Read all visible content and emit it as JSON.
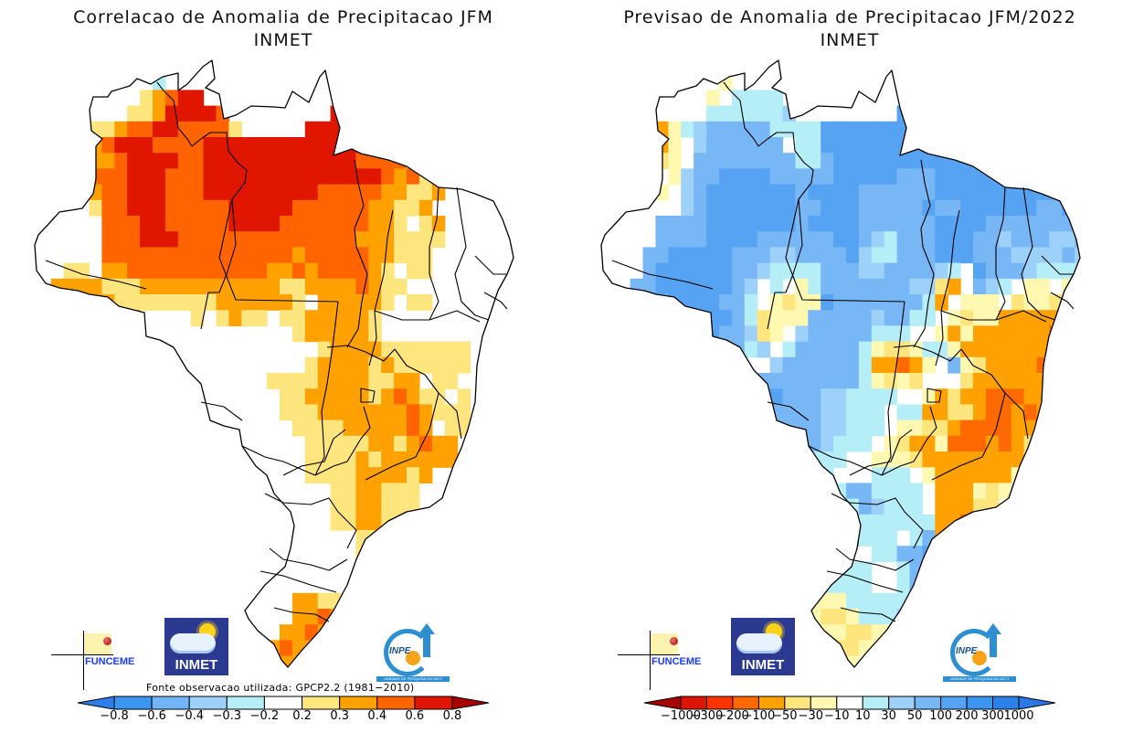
{
  "left_panel": {
    "title_line1": "Correlacao de Anomalia de Precipitacao JFM",
    "title_line2": "INMET",
    "source_note": "Fonte observacao utilizada: GPCP2.2 (1981−2010)",
    "logos": {
      "funceme": "FUNCEME",
      "inmet": "INMET",
      "inpe": "INPE",
      "inpe_subtitle": "UNIDADE DE PESQUISA DO MCTI"
    },
    "colorbar": {
      "labels": [
        "−0.8",
        "−0.6",
        "−0.4",
        "−0.3",
        "−0.2",
        "0.2",
        "0.3",
        "0.4",
        "0.6",
        "0.8"
      ],
      "colors": [
        "#2f7fea",
        "#3d95f2",
        "#72b5f7",
        "#9dd1f9",
        "#b6eef8",
        "#ffffff",
        "#ffe57d",
        "#ffa100",
        "#ff6400",
        "#e01600",
        "#a60000"
      ]
    }
  },
  "right_panel": {
    "title_line1": "Previsao de Anomalia de Precipitacao JFM/2022",
    "title_line2": "INMET",
    "logos": {
      "funceme": "FUNCEME",
      "inmet": "INMET",
      "inpe": "INPE",
      "inpe_subtitle": "UNIDADE DE PESQUISA DO MCTI"
    },
    "colorbar": {
      "labels": [
        "−1000",
        "−300",
        "−200",
        "−100",
        "−50",
        "−30",
        "−10",
        "10",
        "30",
        "50",
        "100",
        "200",
        "300",
        "1000"
      ],
      "colors": [
        "#a60000",
        "#dc1400",
        "#ff3200",
        "#ff6a00",
        "#ffa100",
        "#ffe57d",
        "#fff8b0",
        "#ffffff",
        "#b6eef8",
        "#9dd1f9",
        "#78b7f6",
        "#55a3f2",
        "#3d95f2",
        "#2d82e8",
        "#2a78e6"
      ]
    }
  },
  "chart_data": [
    {
      "type": "heatmap",
      "title": "Correlacao de Anomalia de Precipitacao JFM",
      "subtitle": "INMET",
      "region": "Brazil",
      "variable": "Correlation of precipitation anomaly (JFM)",
      "source": "GPCP2.2 (1981-2010)",
      "levels": [
        -0.8,
        -0.6,
        -0.4,
        -0.3,
        -0.2,
        0.2,
        0.3,
        0.4,
        0.6,
        0.8
      ],
      "class_colors": [
        "#3d95f2",
        "#72b5f7",
        "#9dd1f9",
        "#b6eef8",
        "#ffffff",
        "#ffe57d",
        "#ffa100",
        "#ff6400",
        "#e01600"
      ],
      "class_ranges": [
        "-0.8..-0.6",
        "-0.6..-0.4",
        "-0.4..-0.3",
        "-0.3..-0.2",
        "-0.2..0.2",
        "0.2..0.3",
        "0.3..0.4",
        "0.4..0.6",
        "0.6..0.8"
      ],
      "grid_note": "Each character is a grid cell class index into class_colors (4 = white/neutral, '.' = no data/outside)",
      "grid": [
        "..........................................",
        "..........3..4444.........................",
        ".........5678844..........................",
        "........556888874.......88777.............",
        ".....556778877775.....8888877.............",
        ".....67888777788888888888887775...........",
        ".....66788887788888888888877775...........",
        ".....77788877788888888888888767556.......",
        ".....6778887778888888887777766556........",
        ".....577888777778888877777766556.........",
        ".....4777887777788887777777665456........",
        ".....4777888777777777777776665555........",
        "....4477777777777777767777766555.........",
        "...55466777777777776676777765455.........",
        "..6666555666666666665566667655...........",
        "..667665555555566666654666665.55.........",
        "..66776664444545655455666665.............",
        "...5765544444444444445666665.............",
        "....565.3.......4444444566665555555......",
        ".........3.........4445666656555555......",
        "...................555566665566455.......",
        "....................556666656765545......",
        "....................555666666676555......",
        ".....................55556666676455......",
        "......................55555665676645.....",
        "......................555565666666445....",
        "......................5555666656444445...",
        "........................55665554444445...",
        "........................55665554444455...",
        "........................5566554444445....",
        "........................445555444445.....",
        "..........................5555...........",
        "........................................",
        "........................................",
        ".....................6655................",
        ".....................667655..............",
        "....................6676655..............",
        "...................67666655..............",
        "...................66655544..............",
        "....................66555................",
        "........................................."
      ]
    },
    {
      "type": "heatmap",
      "title": "Previsao de Anomalia de Precipitacao JFM/2022",
      "subtitle": "INMET",
      "region": "Brazil",
      "variable": "Forecast precipitation anomaly JFM/2022 (mm)",
      "levels": [
        -1000,
        -300,
        -200,
        -100,
        -50,
        -30,
        -10,
        10,
        30,
        50,
        100,
        200,
        300,
        1000
      ],
      "class_colors": [
        "#dc1400",
        "#ff3200",
        "#ff6a00",
        "#ffa100",
        "#ffe57d",
        "#fff8b0",
        "#ffffff",
        "#b6eef8",
        "#9dd1f9",
        "#78b7f6",
        "#55a3f2",
        "#3d95f2",
        "#2d82e8"
      ],
      "class_ranges": [
        "-1000..-300",
        "-300..-200",
        "-200..-100",
        "-100..-50",
        "-50..-30",
        "-30..-10",
        "-10..10",
        "10..30",
        "30..50",
        "50..100",
        "100..200",
        "200..300",
        "300..1000"
      ],
      "grid_note": "Each character is a grid cell class: a=-1000..-300, b=-300..-200, c=-200..-100, d=-100..-50, e=-50..-30, f=-30..-10, g=-10..10 (white), h=10..30, i=30..50, j=50..100, k=100..200, l=200..300, m=300..1000; '.' = outside",
      "grid": [
        "..........................................",
        "..........fgggg...........................",
        ".........fghhhh...........................",
        "........ghhhhhhi........kkkkk.............",
        ".....dfhijjjjjhhhhkkkkkkkkkkk.............",
        ".....dfgijjjjjjghhkkkkkkkkkkkk............",
        ".....efgjjjjjjjjhhjkkkkkkkkkkkkkk.........",
        ".....gfijjkkkkjjjjjkkkkkjjjkkkkkkjj.......",
        ".....fgijkkkkkkkjkkkkjjjjjjkkkkkkkkkkj....",
        "......gijkkkkkkkjjkkkjjjjjkjjkkkkkkjjkj...",
        ".....jjjjkkkkkkkjkkkkjjjjjjkkkkjjjjjjjjj..",
        ".....jjjjkkkkjjjjjjkkjihjjjkkkjjijjjiijjj.",
        "....jjkkkkkjjjiijjjjkihhjjjkkkjjjiiiijihh.",
        "....jkkkkkkjjihhhhjjjiijjjjihgkjjjihhhhhe.",
        "...jjkkkkkkjighgfhjjjjjjjiiedgjihgffgfhff.",
        "...jjjkkkkjjhgfeffkjjjjjjjhdgfffgeffeee...",
        "...kkjkkkkkjhefffjjjjjijjhhgfeffdddddddd..",
        "....kkkkkkjjiefgijjjjjhhhggfdfddddddcdd...",
        "....kkk....jhighjjjjjhfeefhhfdddddddddd...",
        "..........jiggijjjjjjhddcdfgjfeddddcddd...",
        "...........jjjjjjjjjjhfefegggeddddddde....",
        "...........jjjkjjjiihhhhggfdeddcccdde.....",
        ".............jjjjjiihhhghhddeedccdcdef....",
        "..............jjjjiihhhgffeedccccdde......",
        "...............jjjihhhgfeddfcccdcde.......",
        "...............jhhhhggfffeddddddddf.......",
        "..............hhhhhggghhhgfddddddfi.......",
        "..............hgggghjjhhhhgdddfefh........",
        "..............fggggghjihhhgdddeeg.........",
        "...............ggghhjhhhhhhddccdd.........",
        "...............fgghhkhhhghjdcbcc..........",
        "...............ehhhhgghhjjkh..............",
        "................fhhhhhgghjk...............",
        "................ffhhhhgghjk...............",
        "................efffhhhhhjk...............",
        "...............fffeefhhhik................",
        "..............ijjhffeeffhhj...............",
        "..............jjihfeefffhk................",
        ".............dfhhffffggfh.................",
        "..............hgghgggghgg.................",
        "...............jhhhggghk..................",
        ".................jjhhk...................."
      ]
    }
  ]
}
